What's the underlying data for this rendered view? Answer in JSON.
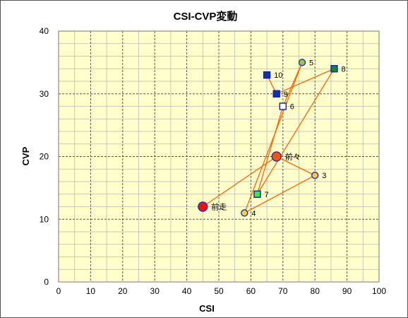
{
  "chart_data": {
    "type": "scatter",
    "title": "CSI-CVP変動",
    "xlabel": "CSI",
    "ylabel": "CVP",
    "xlim": [
      0,
      100
    ],
    "ylim": [
      0,
      40
    ],
    "x_ticks": [
      "0",
      "10",
      "20",
      "30",
      "40",
      "50",
      "60",
      "70",
      "80",
      "90",
      "100"
    ],
    "y_ticks": [
      "0",
      "10",
      "20",
      "30",
      "40"
    ],
    "grid": true,
    "colors": {
      "plot_bg": "#ffffcc",
      "line": "#ff6600",
      "minor_grid": "#b8b8b8",
      "major_grid": "#555555"
    },
    "points": [
      {
        "label": "前走",
        "x": 45,
        "y": 12,
        "shape": "circle",
        "size": "large",
        "fill": "#ee1111",
        "stroke": "#2233aa"
      },
      {
        "label": "前々",
        "x": 68,
        "y": 20,
        "shape": "circle",
        "size": "large",
        "fill": "#ee5511",
        "stroke": "#2233aa"
      },
      {
        "label": "3",
        "x": 80,
        "y": 17,
        "shape": "circle",
        "size": "small",
        "fill": "#ffcc33",
        "stroke": "#2233aa"
      },
      {
        "label": "4",
        "x": 58,
        "y": 11,
        "shape": "circle",
        "size": "small",
        "fill": "#ffcc33",
        "stroke": "#2233aa"
      },
      {
        "label": "5",
        "x": 76,
        "y": 35,
        "shape": "circle",
        "size": "small",
        "fill": "#99cc33",
        "stroke": "#2233aa"
      },
      {
        "label": "6",
        "x": 70,
        "y": 28,
        "shape": "square",
        "size": "small",
        "fill": "#ffffff",
        "stroke": "#1122aa"
      },
      {
        "label": "7",
        "x": 62,
        "y": 14,
        "shape": "square",
        "size": "small",
        "fill": "#33ee33",
        "stroke": "#1122aa"
      },
      {
        "label": "8",
        "x": 86,
        "y": 34,
        "shape": "square",
        "size": "small",
        "fill": "#118833",
        "stroke": "#1122aa"
      },
      {
        "label": "9",
        "x": 68,
        "y": 30,
        "shape": "square",
        "size": "small",
        "fill": "#1133aa",
        "stroke": "#1122aa"
      },
      {
        "label": "10",
        "x": 65,
        "y": 33,
        "shape": "square",
        "size": "small",
        "fill": "#1133aa",
        "stroke": "#1122aa"
      }
    ],
    "connect_order": [
      "前走",
      "前々",
      "3",
      "4",
      "5",
      "6",
      "7",
      "8",
      "9",
      "10"
    ]
  }
}
